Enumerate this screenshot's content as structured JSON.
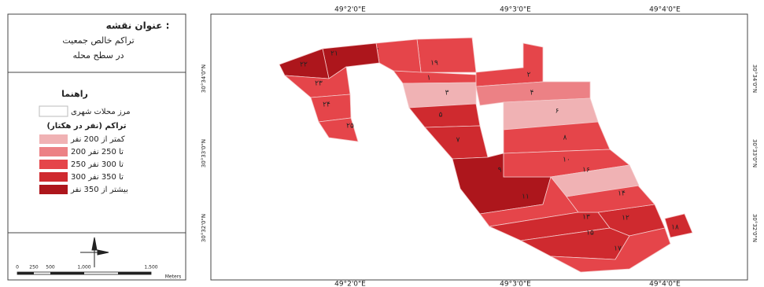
{
  "legend": {
    "title": "عنوان نقشه :",
    "subtitle": [
      "تراکم خالص جمعیت",
      "در سطح محله"
    ],
    "heading": "راهنما",
    "boundary": "مرز محلات شهری",
    "classes_title": "تراکم (نفر در هکتار)",
    "classes": [
      "کمتر از 200 نفر",
      "200 تا 250 نفر",
      "250 تا 300 نفر",
      "300 تا 350 نفر",
      "بیشتر از 350 نفر"
    ]
  },
  "scale_bar": {
    "ticks": [
      "0",
      "250",
      "500",
      "1,000",
      "1,500"
    ],
    "unit": "Meters"
  },
  "map": {
    "top_labels": [
      "49°2'0\"E",
      "49°3'0\"E",
      "49°4'0\"E"
    ],
    "bottom_labels": [
      "49°2'0\"E",
      "49°3'0\"E",
      "49°4'0\"E"
    ],
    "left_labels": [
      "30°34'0\"N",
      "30°33'0\"N",
      "30°32'0\"N"
    ],
    "right_labels": [
      "30°34'0\"N",
      "30°33'0\"N",
      "30°32'0\"N"
    ],
    "districts": [
      "۱",
      "۲",
      "۳",
      "۴",
      "۵",
      "۶",
      "۷",
      "۸",
      "۹",
      "۱۰",
      "۱۱",
      "۱۲",
      "۱۳",
      "۱۴",
      "۱۵",
      "۱۶",
      "۱۷",
      "۱۸",
      "۱۹",
      "۲۰",
      "۲۱",
      "۲۲",
      "۲۳",
      "۲۴",
      "۲۵"
    ]
  }
}
